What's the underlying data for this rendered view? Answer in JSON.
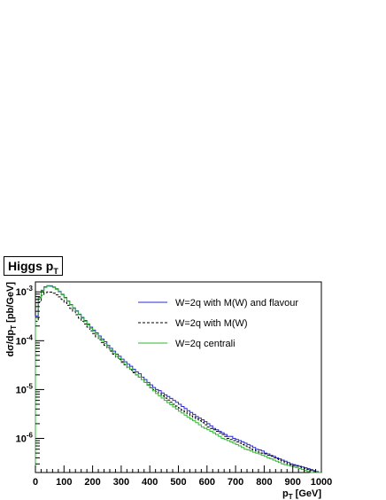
{
  "chart_data": {
    "type": "line",
    "title": "Higgs p",
    "title_sub": "T",
    "ylabel": "dσ/dp",
    "ylabel_sub": "T",
    "ylabel_unit": "[pb/GeV]",
    "xlabel": "p",
    "xlabel_sub": "T",
    "xlabel_unit": "[GeV]",
    "xlim": [
      0,
      1000
    ],
    "ylim": [
      2e-07,
      0.0016
    ],
    "yscale": "log",
    "xticks": [
      0,
      100,
      200,
      300,
      400,
      500,
      600,
      700,
      800,
      900,
      1000
    ],
    "xtick_labels": [
      "0",
      "100",
      "200",
      "300",
      "400",
      "500",
      "600",
      "700",
      "800",
      "900",
      "1000"
    ],
    "yticks": [
      1e-06,
      1e-05,
      0.0001,
      0.001
    ],
    "ytick_labels": [
      {
        "base": "10",
        "exp": "-6"
      },
      {
        "base": "10",
        "exp": "-5"
      },
      {
        "base": "10",
        "exp": "-4"
      },
      {
        "base": "10",
        "exp": "-3"
      }
    ],
    "grid": false,
    "legend_position": "top-right",
    "bin_width": 10,
    "x": [
      0,
      10,
      20,
      30,
      40,
      50,
      60,
      70,
      80,
      90,
      100,
      110,
      120,
      130,
      140,
      150,
      160,
      170,
      180,
      190,
      200,
      210,
      220,
      230,
      240,
      250,
      260,
      270,
      280,
      290,
      300,
      310,
      320,
      330,
      340,
      350,
      360,
      370,
      380,
      390,
      400,
      410,
      420,
      430,
      440,
      450,
      460,
      470,
      480,
      490,
      500,
      510,
      520,
      530,
      540,
      550,
      560,
      570,
      580,
      590,
      600,
      610,
      620,
      630,
      640,
      650,
      660,
      670,
      680,
      690,
      700,
      710,
      720,
      730,
      740,
      750,
      760,
      770,
      780,
      790,
      800,
      810,
      820,
      830,
      840,
      850,
      860,
      870,
      880,
      890,
      900,
      910,
      920,
      930,
      940,
      950,
      960,
      970,
      980,
      990
    ],
    "series": [
      {
        "name": "W=2q with M(W) and flavour",
        "color": "#2a2ad4",
        "dash": "solid",
        "values": [
          0.00032,
          0.00078,
          0.00108,
          0.00127,
          0.00134,
          0.00133,
          0.00126,
          0.00116,
          0.00102,
          0.00089,
          0.00077,
          0.00065,
          0.00055,
          0.00047,
          0.00041,
          0.00035,
          0.0003,
          0.00026,
          0.00022,
          0.00019,
          0.000165,
          0.000145,
          0.000125,
          0.000108,
          9.5e-05,
          8e-05,
          7e-05,
          6.1e-05,
          5.3e-05,
          4.8e-05,
          4.2e-05,
          3.7e-05,
          3.3e-05,
          3e-05,
          2.6e-05,
          2.3e-05,
          2.1e-05,
          1.8e-05,
          1.6e-05,
          1.4e-05,
          1.25e-05,
          1.1e-05,
          1e-05,
          9.5e-06,
          8.5e-06,
          7.8e-06,
          7.2e-06,
          6.6e-06,
          6e-06,
          5.5e-06,
          5e-06,
          4.5e-06,
          4.1e-06,
          3.7e-06,
          3.4e-06,
          3.1e-06,
          2.8e-06,
          2.6e-06,
          2.4e-06,
          2.2e-06,
          2e-06,
          1.8e-06,
          1.6e-06,
          1.5e-06,
          1.4e-06,
          1.3e-06,
          1.2e-06,
          1.1e-06,
          1.1e-06,
          1e-06,
          9.5e-07,
          9e-07,
          8.5e-07,
          8e-07,
          7.5e-07,
          7e-07,
          6.5e-07,
          6e-07,
          5.8e-07,
          5.5e-07,
          5e-07,
          4.8e-07,
          4.5e-07,
          4.3e-07,
          4e-07,
          3.8e-07,
          3.6e-07,
          3.4e-07,
          3.2e-07,
          3e-07,
          2.9e-07,
          2.8e-07,
          2.7e-07,
          2.6e-07,
          2.5e-07,
          2.4e-07,
          2.3e-07,
          2.2e-07,
          2.1e-07,
          2e-07
        ]
      },
      {
        "name": "W=2q with M(W)",
        "color": "#000000",
        "dash": "dashed",
        "values": [
          0.00025,
          0.00062,
          0.00085,
          0.00096,
          0.001,
          0.00099,
          0.00094,
          0.00087,
          0.00079,
          0.0007,
          0.00061,
          0.00053,
          0.00046,
          0.0004,
          0.00034,
          0.00029,
          0.00025,
          0.00022,
          0.00019,
          0.00016,
          0.00014,
          0.00012,
          0.000105,
          9.2e-05,
          8e-05,
          7e-05,
          6.1e-05,
          5.3e-05,
          4.6e-05,
          4.1e-05,
          3.6e-05,
          3.2e-05,
          2.8e-05,
          2.5e-05,
          2.2e-05,
          2e-05,
          1.8e-05,
          1.6e-05,
          1.4e-05,
          1.25e-05,
          1.1e-05,
          1e-05,
          9.1e-06,
          8.2e-06,
          7.4e-06,
          6.7e-06,
          6.1e-06,
          5.5e-06,
          5e-06,
          4.6e-06,
          4.2e-06,
          3.8e-06,
          3.5e-06,
          3.2e-06,
          2.9e-06,
          2.7e-06,
          2.5e-06,
          2.3e-06,
          2.1e-06,
          1.9e-06,
          1.7e-06,
          1.6e-06,
          1.5e-06,
          1.4e-06,
          1.3e-06,
          1.2e-06,
          1.1e-06,
          1e-06,
          9.5e-07,
          9e-07,
          8.5e-07,
          8e-07,
          7.5e-07,
          7e-07,
          6.5e-07,
          6e-07,
          5.8e-07,
          5.5e-07,
          5.2e-07,
          5e-07,
          4.8e-07,
          4.5e-07,
          4.3e-07,
          4e-07,
          3.8e-07,
          3.6e-07,
          3.4e-07,
          3.2e-07,
          3e-07,
          2.9e-07,
          2.8e-07,
          2.7e-07,
          2.6e-07,
          2.5e-07,
          2.4e-07,
          2.3e-07,
          2.2e-07,
          2.1e-07,
          2e-07,
          2e-07
        ]
      },
      {
        "name": "W=2q centrali",
        "color": "#2eb82e",
        "dash": "solid",
        "values": [
          0.0003,
          0.00075,
          0.00105,
          0.00124,
          0.00131,
          0.0013,
          0.00123,
          0.00113,
          0.001,
          0.00087,
          0.00075,
          0.00064,
          0.00054,
          0.00046,
          0.0004,
          0.00034,
          0.00029,
          0.00025,
          0.00021,
          0.00018,
          0.000155,
          0.000135,
          0.000115,
          0.0001,
          8.7e-05,
          7.4e-05,
          6.4e-05,
          5.6e-05,
          4.8e-05,
          4.3e-05,
          3.8e-05,
          3.3e-05,
          2.9e-05,
          2.6e-05,
          2.3e-05,
          2e-05,
          1.8e-05,
          1.6e-05,
          1.4e-05,
          1.22e-05,
          1.08e-05,
          9.4e-06,
          8.3e-06,
          7.4e-06,
          6.7e-06,
          6e-06,
          5.4e-06,
          4.9e-06,
          4.4e-06,
          4e-06,
          3.6e-06,
          3.3e-06,
          3e-06,
          2.7e-06,
          2.5e-06,
          2.3e-06,
          2.1e-06,
          1.9e-06,
          1.7e-06,
          1.6e-06,
          1.5e-06,
          1.4e-06,
          1.3e-06,
          1.2e-06,
          1.1e-06,
          1e-06,
          9.5e-07,
          9e-07,
          8.5e-07,
          8e-07,
          7.5e-07,
          7e-07,
          6.5e-07,
          6e-07,
          5.8e-07,
          5.5e-07,
          5.2e-07,
          5e-07,
          4.8e-07,
          4.5e-07,
          4.3e-07,
          4e-07,
          3.8e-07,
          3.6e-07,
          3.4e-07,
          3.2e-07,
          3e-07,
          2.9e-07,
          2.8e-07,
          2.7e-07,
          2.6e-07,
          2.5e-07,
          2.4e-07,
          2.3e-07,
          2.2e-07,
          2.1e-07,
          2e-07,
          2e-07,
          2e-07,
          2e-07
        ]
      }
    ]
  }
}
